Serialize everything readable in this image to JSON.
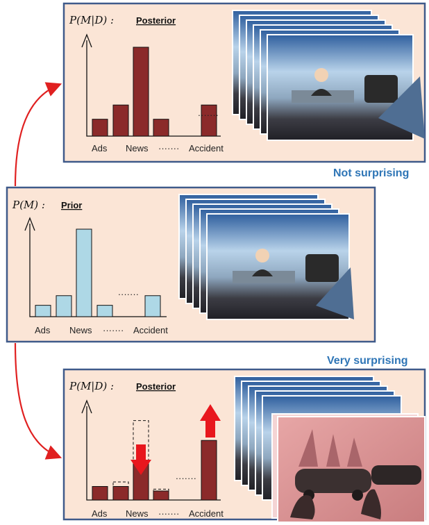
{
  "top": {
    "math": "P(M|D) :",
    "label": "Posterior",
    "status": "Not surprising",
    "values": [
      0.19,
      0.35,
      1.0,
      0.19,
      0.35
    ],
    "ticks": [
      "Ads",
      "News",
      "·······",
      "Accident"
    ],
    "gap": "·······"
  },
  "middle": {
    "math": "P(M) :",
    "label": "Prior",
    "values": [
      0.13,
      0.24,
      1.0,
      0.13,
      0.24
    ],
    "ticks": [
      "Ads",
      "News",
      "·······",
      "Accident"
    ],
    "gap": "·······"
  },
  "bottom": {
    "math": "P(M|D) :",
    "label": "Posterior",
    "status": "Very surprising",
    "values": [
      0.15,
      0.15,
      0.42,
      0.1,
      0.66
    ],
    "prior_values": [
      0.15,
      0.2,
      0.88,
      0.12,
      0.15
    ],
    "ticks": [
      "Ads",
      "News",
      "·······",
      "Accident"
    ],
    "gap": "·······"
  },
  "colors": {
    "posterior_bar": "#8b2a2a",
    "prior_bar": "#aed8e6",
    "panel_bg": "#fbe5d6",
    "panel_border": "#3f5a8a",
    "status_text": "#2e75b6",
    "arrow": "#e02020"
  },
  "chart_data": [
    {
      "type": "bar",
      "title": "P(M|D) : Posterior",
      "categories": [
        "Ads",
        "",
        "News",
        "",
        "Accident"
      ],
      "values": [
        0.19,
        0.35,
        1.0,
        0.19,
        0.35
      ]
    },
    {
      "type": "bar",
      "title": "P(M) : Prior",
      "categories": [
        "Ads",
        "",
        "News",
        "",
        "Accident"
      ],
      "values": [
        0.13,
        0.24,
        1.0,
        0.13,
        0.24
      ]
    },
    {
      "type": "bar",
      "title": "P(M|D) : Posterior",
      "categories": [
        "Ads",
        "",
        "News",
        "",
        "Accident"
      ],
      "values": [
        0.15,
        0.15,
        0.42,
        0.1,
        0.66
      ]
    }
  ]
}
